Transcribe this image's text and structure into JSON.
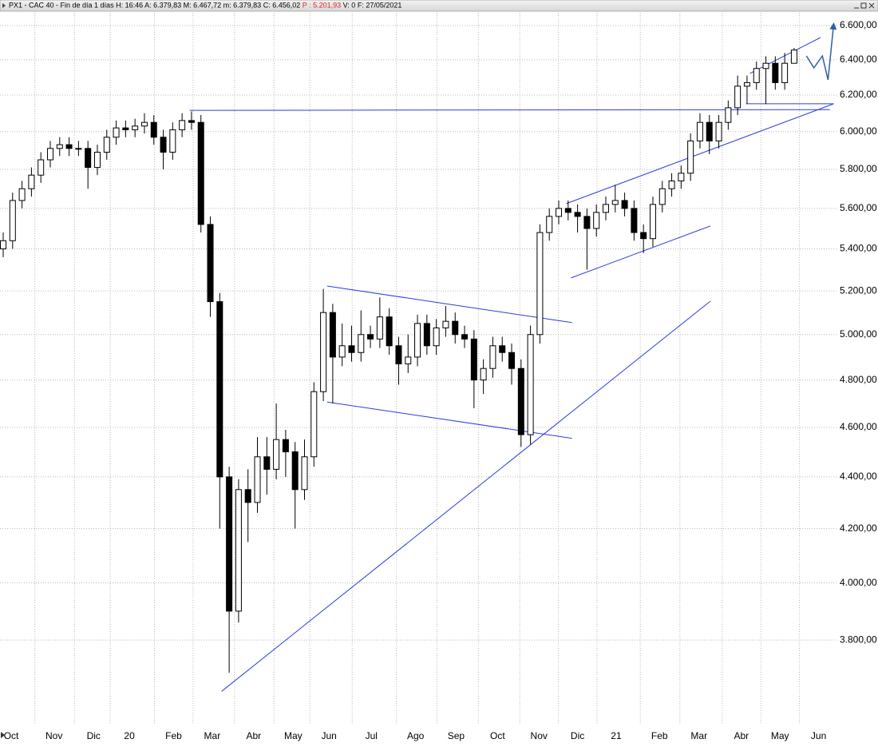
{
  "chart_data": {
    "type": "candlestick",
    "title": "PX1 - CAC 40 - Fin de día 1 días H: 16:46 A: 6.379,83 M: 6.467,72 m: 6.379,83 C: 6.456,02",
    "title_highlight": "P : 5.201,93",
    "title_suffix": "V: 0 F: 27/05/2021",
    "highlight_color": "#e02020",
    "log_y": true,
    "grid": true,
    "ylim": [
      3527,
      6676
    ],
    "yticks": [
      {
        "value": 3800,
        "label": "3.800,00"
      },
      {
        "value": 4000,
        "label": "4.000,00"
      },
      {
        "value": 4200,
        "label": "4.200,00"
      },
      {
        "value": 4400,
        "label": "4.400,00"
      },
      {
        "value": 4600,
        "label": "4.600,00"
      },
      {
        "value": 4800,
        "label": "4.800,00"
      },
      {
        "value": 5000,
        "label": "5.000,00"
      },
      {
        "value": 5200,
        "label": "5.200,00"
      },
      {
        "value": 5400,
        "label": "5.400,00"
      },
      {
        "value": 5600,
        "label": "5.600,00"
      },
      {
        "value": 5800,
        "label": "5.800,00"
      },
      {
        "value": 6000,
        "label": "6.000,00"
      },
      {
        "value": 6200,
        "label": "6.200,00"
      },
      {
        "value": 6400,
        "label": "6.400,00"
      },
      {
        "value": 6600,
        "label": "6.600,00"
      }
    ],
    "xlim": [
      0,
      88.5
    ],
    "xticks": [
      {
        "value": 0.85,
        "label": "Oct"
      },
      {
        "value": 5.4,
        "label": "Nov"
      },
      {
        "value": 9.6,
        "label": "Dic"
      },
      {
        "value": 13.4,
        "label": "20"
      },
      {
        "value": 18.1,
        "label": "Feb"
      },
      {
        "value": 22.2,
        "label": "Mar"
      },
      {
        "value": 26.6,
        "label": "Abr"
      },
      {
        "value": 30.8,
        "label": "May"
      },
      {
        "value": 34.6,
        "label": "Jun"
      },
      {
        "value": 39.1,
        "label": "Jul"
      },
      {
        "value": 43.8,
        "label": "Ago"
      },
      {
        "value": 48.1,
        "label": "Sep"
      },
      {
        "value": 52.5,
        "label": "Oct"
      },
      {
        "value": 56.9,
        "label": "Nov"
      },
      {
        "value": 61.0,
        "label": "Dic"
      },
      {
        "value": 65.1,
        "label": "21"
      },
      {
        "value": 69.7,
        "label": "Feb"
      },
      {
        "value": 73.9,
        "label": "Mar"
      },
      {
        "value": 78.4,
        "label": "Abr"
      },
      {
        "value": 82.5,
        "label": "May"
      },
      {
        "value": 86.6,
        "label": "Jun"
      }
    ],
    "x": [
      0,
      1,
      2,
      3,
      4,
      5,
      6,
      7,
      8,
      9,
      10,
      11,
      12,
      13,
      14,
      15,
      16,
      17,
      18,
      19,
      20,
      21,
      22,
      23,
      24,
      25,
      26,
      27,
      28,
      29,
      30,
      31,
      32,
      33,
      34,
      35,
      36,
      37,
      38,
      39,
      40,
      41,
      42,
      43,
      44,
      45,
      46,
      47,
      48,
      49,
      50,
      51,
      52,
      53,
      54,
      55,
      56,
      57,
      58,
      59,
      60,
      61,
      62,
      63,
      64,
      65,
      66,
      67,
      68,
      69,
      70,
      71,
      72,
      73,
      74,
      75,
      76,
      77,
      78,
      79,
      80,
      81,
      82,
      83,
      84
    ],
    "open": [
      5400,
      5440,
      5640,
      5700,
      5770,
      5850,
      5910,
      5930,
      5910,
      5910,
      5810,
      5890,
      5970,
      6020,
      6010,
      6030,
      6050,
      5970,
      5890,
      6010,
      6060,
      6050,
      5520,
      5150,
      4400,
      3900,
      4350,
      4300,
      4480,
      4430,
      4550,
      4500,
      4350,
      4480,
      4750,
      5100,
      4900,
      4950,
      4920,
      5000,
      4980,
      5080,
      4950,
      4870,
      4900,
      5050,
      4950,
      5030,
      5060,
      5000,
      4980,
      4800,
      4850,
      4950,
      4920,
      4850,
      4570,
      5000,
      5480,
      5560,
      5600,
      5580,
      5560,
      5500,
      5580,
      5620,
      5640,
      5600,
      5480,
      5450,
      5620,
      5700,
      5740,
      5780,
      5950,
      6050,
      5950,
      6050,
      6130,
      6250,
      6270,
      6350,
      6380,
      6270,
      6380
    ],
    "high": [
      5480,
      5680,
      5740,
      5810,
      5890,
      5950,
      5970,
      5970,
      5950,
      5950,
      5930,
      6010,
      6060,
      6060,
      6070,
      6100,
      6090,
      6010,
      6050,
      6100,
      6110,
      6090,
      5560,
      5190,
      4440,
      4390,
      4430,
      4560,
      4560,
      4700,
      4590,
      4540,
      4550,
      4790,
      5210,
      5140,
      5050,
      5040,
      5110,
      5040,
      5170,
      5120,
      4990,
      5000,
      5090,
      5090,
      5070,
      5130,
      5100,
      5040,
      5020,
      4890,
      4990,
      4990,
      4960,
      4890,
      5040,
      5520,
      5600,
      5640,
      5640,
      5620,
      5600,
      5620,
      5660,
      5720,
      5680,
      5640,
      5520,
      5660,
      5740,
      5780,
      5820,
      5990,
      6100,
      6090,
      6090,
      6170,
      6310,
      6310,
      6390,
      6420,
      6420,
      6440,
      6468
    ],
    "low": [
      5360,
      5400,
      5600,
      5660,
      5730,
      5810,
      5870,
      5870,
      5870,
      5700,
      5770,
      5850,
      5930,
      5970,
      5970,
      5990,
      5930,
      5800,
      5850,
      5970,
      6010,
      5480,
      5080,
      4200,
      3690,
      3860,
      4150,
      4260,
      4330,
      4390,
      4400,
      4200,
      4310,
      4440,
      4710,
      4700,
      4860,
      4880,
      4880,
      4940,
      4940,
      4910,
      4780,
      4830,
      4860,
      4910,
      4910,
      4990,
      4960,
      4940,
      4680,
      4740,
      4810,
      4880,
      4780,
      4520,
      4530,
      4960,
      5440,
      5520,
      5540,
      5480,
      5300,
      5460,
      5540,
      5580,
      5560,
      5440,
      5380,
      5410,
      5580,
      5660,
      5700,
      5740,
      5910,
      5880,
      5910,
      6010,
      6090,
      6150,
      6230,
      6150,
      6230,
      6230,
      6380
    ],
    "close": [
      5440,
      5640,
      5700,
      5770,
      5850,
      5910,
      5930,
      5910,
      5910,
      5810,
      5890,
      5970,
      6020,
      6010,
      6030,
      6050,
      5970,
      5890,
      6010,
      6060,
      6050,
      5520,
      5150,
      4400,
      3900,
      4350,
      4300,
      4480,
      4430,
      4550,
      4500,
      4350,
      4480,
      4750,
      5100,
      4900,
      4950,
      4920,
      5000,
      4980,
      5080,
      4950,
      4870,
      4900,
      5050,
      4950,
      5030,
      5060,
      5000,
      4980,
      4800,
      4850,
      4950,
      4920,
      4850,
      4570,
      5000,
      5480,
      5560,
      5600,
      5580,
      5560,
      5500,
      5580,
      5620,
      5640,
      5600,
      5480,
      5450,
      5620,
      5700,
      5740,
      5780,
      5950,
      6050,
      5950,
      6050,
      6130,
      6250,
      6270,
      6350,
      6380,
      6270,
      6380,
      6456
    ],
    "up_color": "#ffffff",
    "down_color": "#000000",
    "trendline_color": "#2b3de0",
    "trendlines": [
      {
        "x": [
          19.8,
          87.8
        ],
        "y": [
          6116,
          6120
        ]
      },
      {
        "x": [
          78.9,
          88.2
        ],
        "y": [
          6152,
          6152
        ]
      },
      {
        "x": [
          59.8,
          88.2
        ],
        "y": [
          5624,
          6152
        ]
      },
      {
        "x": [
          60.3,
          75.1
        ],
        "y": [
          5261,
          5512
        ]
      },
      {
        "x": [
          23.2,
          75.1
        ],
        "y": [
          3629,
          5152
        ]
      },
      {
        "x": [
          34.4,
          60.4
        ],
        "y": [
          5223,
          5054
        ]
      },
      {
        "x": [
          34.4,
          60.4
        ],
        "y": [
          4706,
          4555
        ]
      },
      {
        "x": [
          79.3,
          86.8
        ],
        "y": [
          6322,
          6529
        ]
      }
    ],
    "arrow": {
      "color": "#2e5fa6",
      "x": [
        85.3,
        86.1,
        87.0,
        87.6,
        88.2
      ],
      "y": [
        6422,
        6354,
        6422,
        6286,
        6610
      ]
    }
  }
}
